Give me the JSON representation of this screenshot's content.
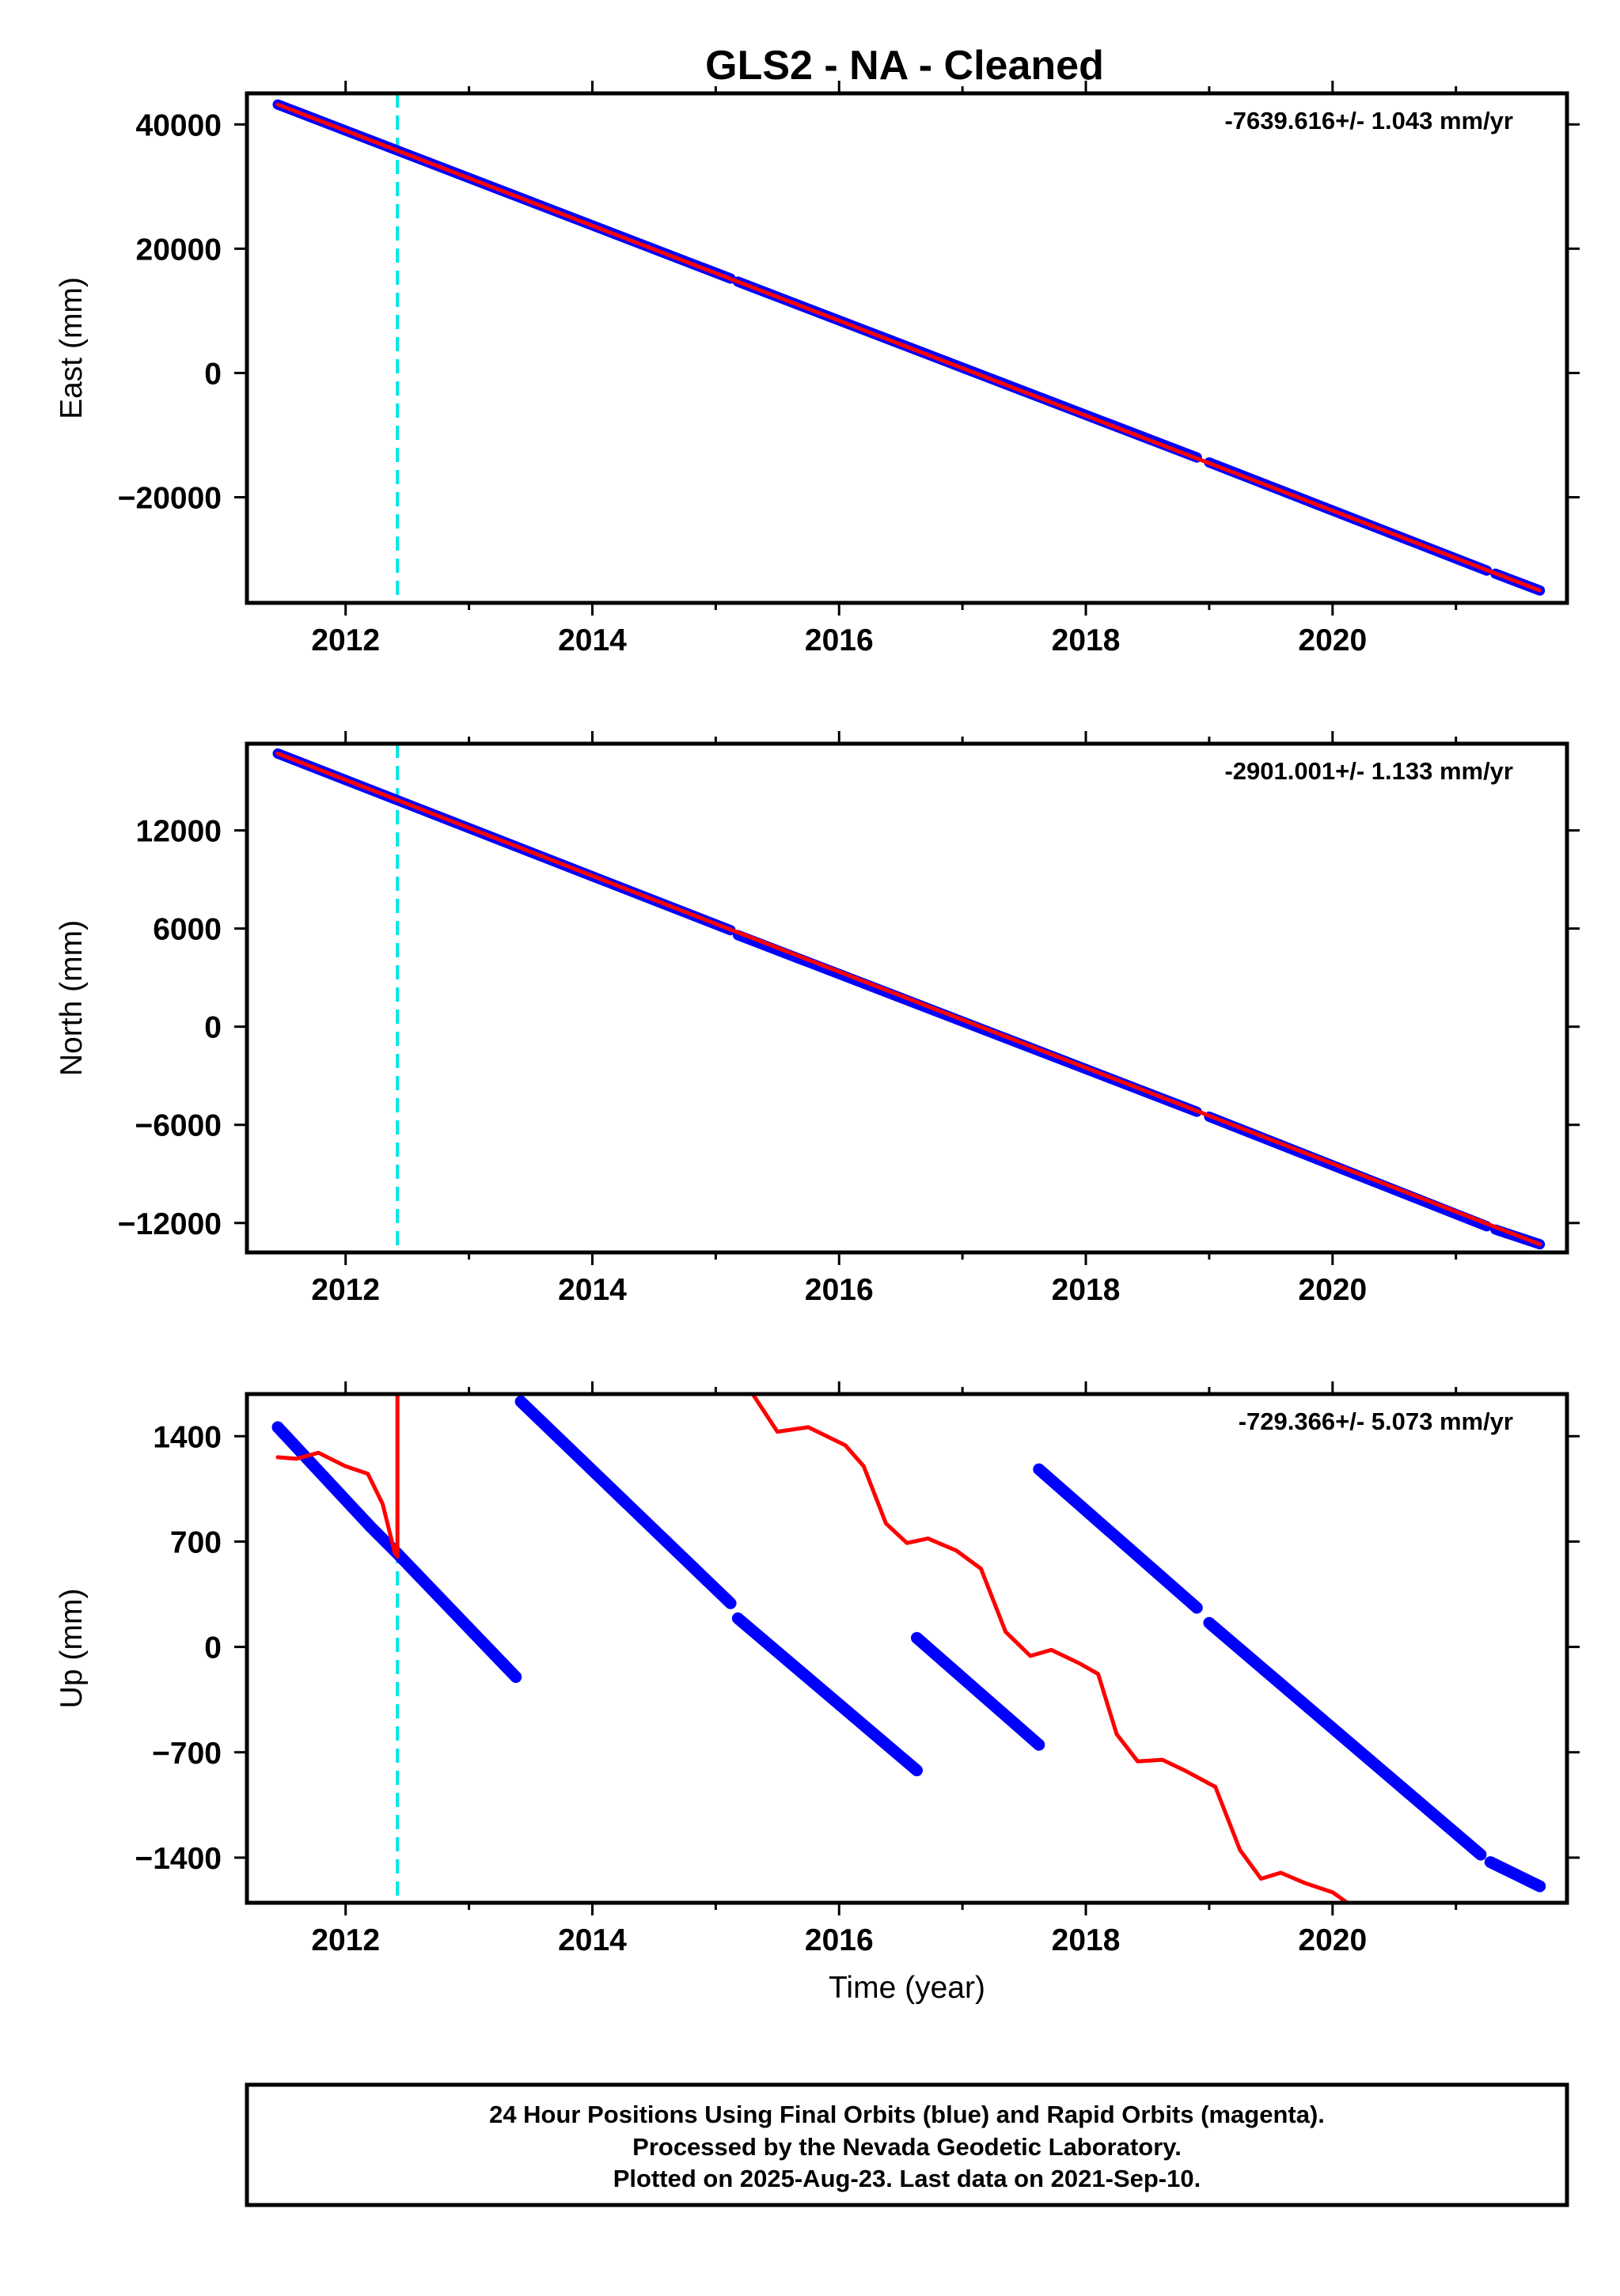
{
  "title": "GLS2  - NA - Cleaned",
  "colors": {
    "final": "#0000ff",
    "rapid": "#ff0000",
    "event": "#00e5e5",
    "frame": "#000000"
  },
  "chart_data": [
    {
      "type": "scatter",
      "ylabel": "East (mm)",
      "xlabel": "",
      "rate_label": "-7639.616+/- 1.043 mm/yr",
      "xlim": [
        2011.2,
        2021.9
      ],
      "ylim": [
        -37000,
        45000
      ],
      "x_ticks": [
        2012,
        2014,
        2016,
        2018,
        2020
      ],
      "x_tick_labels": [
        "2012",
        "2014",
        "2016",
        "2018",
        "2020"
      ],
      "y_ticks": [
        40000,
        20000,
        0,
        -20000
      ],
      "y_tick_labels": [
        "40000",
        "20000",
        "0",
        "−20000"
      ],
      "event_lines": [
        2012.42
      ],
      "final_segments": [
        [
          [
            2011.45,
            43200
          ],
          [
            2015.12,
            15200
          ]
        ],
        [
          [
            2015.18,
            14700
          ],
          [
            2018.9,
            -13600
          ]
        ],
        [
          [
            2019.0,
            -14400
          ],
          [
            2021.25,
            -31800
          ]
        ],
        [
          [
            2021.32,
            -32300
          ],
          [
            2021.68,
            -35000
          ]
        ]
      ],
      "rapid_segments": [
        [
          [
            2011.45,
            43200
          ],
          [
            2021.68,
            -35000
          ]
        ]
      ]
    },
    {
      "type": "scatter",
      "ylabel": "North (mm)",
      "xlabel": "",
      "rate_label": "-2901.001+/- 1.133 mm/yr",
      "xlim": [
        2011.2,
        2021.9
      ],
      "ylim": [
        -13800,
        17300
      ],
      "x_ticks": [
        2012,
        2014,
        2016,
        2018,
        2020
      ],
      "x_tick_labels": [
        "2012",
        "2014",
        "2016",
        "2018",
        "2020"
      ],
      "y_ticks": [
        12000,
        6000,
        0,
        -6000,
        -12000
      ],
      "y_tick_labels": [
        "12000",
        "6000",
        "0",
        "−6000",
        "−12000"
      ],
      "event_lines": [
        2012.42
      ],
      "final_segments": [
        [
          [
            2011.45,
            16700
          ],
          [
            2015.12,
            5900
          ]
        ],
        [
          [
            2015.18,
            5600
          ],
          [
            2018.9,
            -5200
          ]
        ],
        [
          [
            2019.0,
            -5500
          ],
          [
            2021.25,
            -12200
          ]
        ],
        [
          [
            2021.32,
            -12400
          ],
          [
            2021.68,
            -13300
          ]
        ]
      ],
      "rapid_segments": [
        [
          [
            2011.45,
            16700
          ],
          [
            2021.68,
            -13300
          ]
        ]
      ]
    },
    {
      "type": "scatter",
      "ylabel": "Up (mm)",
      "xlabel": "Time (year)",
      "rate_label": "-729.366+/- 5.073 mm/yr",
      "xlim": [
        2011.2,
        2021.9
      ],
      "ylim": [
        -1700,
        1680
      ],
      "x_ticks": [
        2012,
        2014,
        2016,
        2018,
        2020
      ],
      "x_tick_labels": [
        "2012",
        "2014",
        "2016",
        "2018",
        "2020"
      ],
      "y_ticks": [
        1400,
        700,
        0,
        -700,
        -1400
      ],
      "y_tick_labels": [
        "1400",
        "700",
        "0",
        "−700",
        "−1400"
      ],
      "event_lines": [
        2012.42
      ],
      "final_segments": [
        [
          [
            2011.45,
            1460
          ],
          [
            2012.2,
            800
          ],
          [
            2012.42,
            620
          ],
          [
            2013.38,
            -200
          ]
        ],
        [
          [
            2013.42,
            1630
          ],
          [
            2015.12,
            290
          ]
        ],
        [
          [
            2015.18,
            190
          ],
          [
            2016.63,
            -820
          ]
        ],
        [
          [
            2016.63,
            60
          ],
          [
            2017.62,
            -650
          ]
        ],
        [
          [
            2017.62,
            1180
          ],
          [
            2018.9,
            260
          ]
        ],
        [
          [
            2019.0,
            160
          ],
          [
            2021.2,
            -1380
          ]
        ],
        [
          [
            2021.28,
            -1430
          ],
          [
            2021.68,
            -1590
          ]
        ]
      ],
      "rapid_segments": [
        [
          [
            2011.45,
            1260
          ],
          [
            2011.6,
            1250
          ],
          [
            2011.78,
            1290
          ],
          [
            2012.0,
            1200
          ],
          [
            2012.18,
            1150
          ],
          [
            2012.3,
            950
          ],
          [
            2012.4,
            620
          ]
        ],
        [
          [
            2012.42,
            600
          ],
          [
            2012.42,
            1700
          ]
        ],
        [
          [
            2015.3,
            1680
          ],
          [
            2015.5,
            1430
          ],
          [
            2015.75,
            1460
          ],
          [
            2016.05,
            1340
          ],
          [
            2016.2,
            1200
          ],
          [
            2016.38,
            820
          ],
          [
            2016.55,
            690
          ],
          [
            2016.72,
            720
          ],
          [
            2016.95,
            640
          ],
          [
            2017.15,
            520
          ],
          [
            2017.35,
            100
          ],
          [
            2017.55,
            -60
          ],
          [
            2017.72,
            -20
          ],
          [
            2017.95,
            -110
          ],
          [
            2018.1,
            -180
          ],
          [
            2018.25,
            -580
          ],
          [
            2018.42,
            -760
          ],
          [
            2018.62,
            -750
          ],
          [
            2018.8,
            -820
          ],
          [
            2019.05,
            -930
          ],
          [
            2019.25,
            -1350
          ],
          [
            2019.42,
            -1540
          ],
          [
            2019.58,
            -1500
          ],
          [
            2019.78,
            -1570
          ],
          [
            2020.0,
            -1630
          ],
          [
            2020.12,
            -1700
          ]
        ]
      ]
    }
  ],
  "footer": {
    "line1": "24 Hour Positions Using Final Orbits (blue) and Rapid Orbits (magenta).",
    "line2": "Processed by the Nevada Geodetic Laboratory.",
    "line3": "Plotted on 2025-Aug-23. Last data on 2021-Sep-10."
  }
}
